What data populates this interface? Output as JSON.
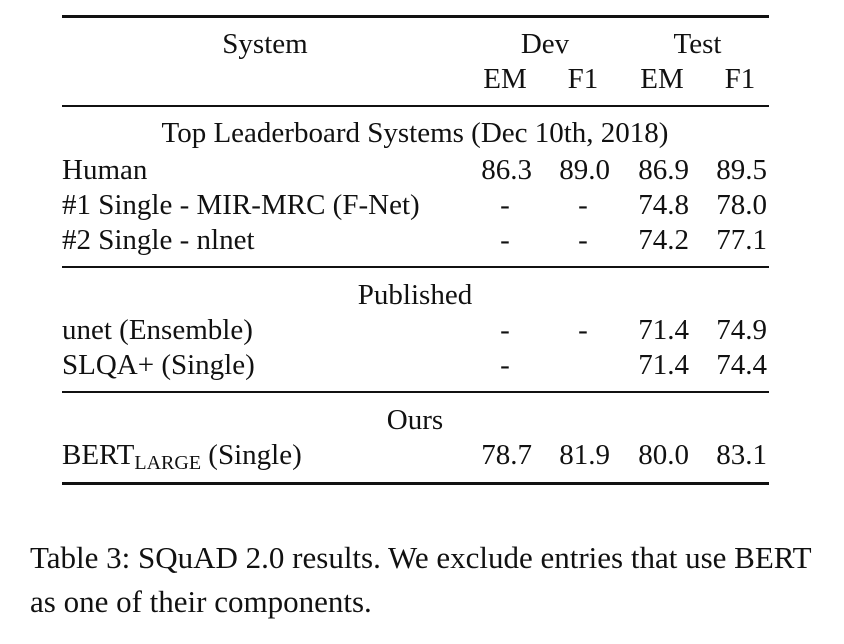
{
  "header": {
    "system": "System",
    "dev": "Dev",
    "test": "Test",
    "em": "EM",
    "f1": "F1"
  },
  "sections": [
    {
      "title": "Top Leaderboard Systems (Dec 10th, 2018)",
      "rows": [
        {
          "system": "Human",
          "dev_em": "86.3",
          "dev_f1": "89.0",
          "test_em": "86.9",
          "test_f1": "89.5"
        },
        {
          "system": "#1 Single - MIR-MRC (F-Net)",
          "dev_em": "-",
          "dev_f1": "-",
          "test_em": "74.8",
          "test_f1": "78.0"
        },
        {
          "system": "#2 Single - nlnet",
          "dev_em": "-",
          "dev_f1": "-",
          "test_em": "74.2",
          "test_f1": "77.1"
        }
      ]
    },
    {
      "title": "Published",
      "rows": [
        {
          "system": "unet (Ensemble)",
          "dev_em": "-",
          "dev_f1": "-",
          "test_em": "71.4",
          "test_f1": "74.9"
        },
        {
          "system": "SLQA+ (Single)",
          "dev_em": "-",
          "dev_f1": "",
          "test_em": "71.4",
          "test_f1": "74.4"
        }
      ]
    },
    {
      "title": "Ours",
      "rows": [
        {
          "system_main": "BERT",
          "system_sub": "LARGE",
          "system_rest": " (Single)",
          "dev_em": "78.7",
          "dev_f1": "81.9",
          "test_em": "80.0",
          "test_f1": "83.1"
        }
      ]
    }
  ],
  "caption": "Table 3:  SQuAD 2.0 results.  We exclude entries that use BERT as one of their components."
}
